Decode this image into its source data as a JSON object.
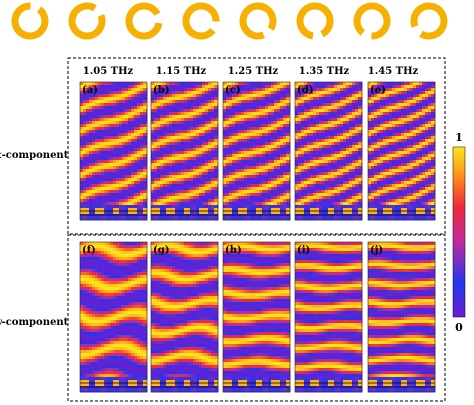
{
  "figure": {
    "row_labels": [
      {
        "italic": "x",
        "rest": "-component"
      },
      {
        "italic": "y",
        "rest": "-component"
      }
    ],
    "frequencies": [
      "1.05 THz",
      "1.15 THz",
      "1.25 THz",
      "1.35 THz",
      "1.45 THz"
    ],
    "panel_labels_top": [
      "(a)",
      "(b)",
      "(c)",
      "(d)",
      "(e)"
    ],
    "panel_labels_bottom": [
      "(f)",
      "(g)",
      "(h)",
      "(i)",
      "(j)"
    ],
    "colorbar": {
      "max_label": "1",
      "min_label": "0"
    },
    "colors": {
      "ring": "#f5b000",
      "stops": [
        "#6a1fd0",
        "#3a2ae8",
        "#2436ee",
        "#c42a9a",
        "#ee2a3a",
        "#ff8a1a",
        "#ffe61a"
      ]
    },
    "ring_gap_angles_deg": [
      20,
      50,
      80,
      110,
      140,
      170,
      200,
      230
    ],
    "waves": {
      "top": [
        {
          "period": 22,
          "slope": 0.55
        },
        {
          "period": 20,
          "slope": 0.55
        },
        {
          "period": 19,
          "slope": 0.55
        },
        {
          "period": 17,
          "slope": 0.58
        },
        {
          "period": 16,
          "slope": 0.6
        }
      ],
      "bottom": [
        {
          "bands": 4.5,
          "ripple": 0.9
        },
        {
          "bands": 5.5,
          "ripple": 0.8
        },
        {
          "bands": 6.5,
          "ripple": 0.5
        },
        {
          "bands": 7.5,
          "ripple": 0.5
        },
        {
          "bands": 8.0,
          "ripple": 0.5
        }
      ]
    }
  }
}
